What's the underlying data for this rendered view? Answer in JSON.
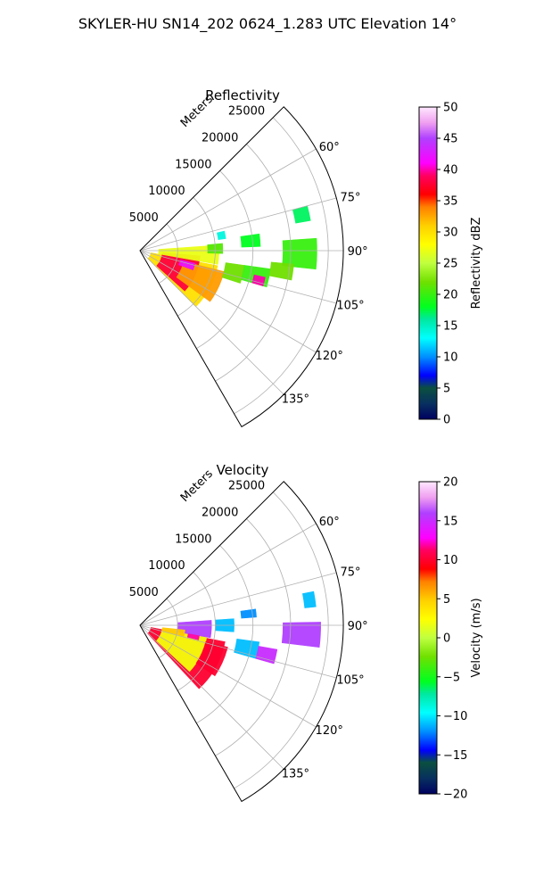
{
  "figure_title": "SKYLER-HU  SN14_202  0624_1.283 UTC Elevation 14°",
  "chart_data": [
    {
      "type": "heatmap",
      "subtype": "polar-sector-radar",
      "title": "Reflectivity",
      "radial_label": "Meters",
      "radial_ticks": [
        5000,
        10000,
        15000,
        20000,
        25000
      ],
      "radial_tick_labels": [
        "5000",
        "10000",
        "15000",
        "20000",
        "25000"
      ],
      "rlim": [
        0,
        27000
      ],
      "azimuth_range_deg": [
        45,
        150
      ],
      "azimuth_ticks": [
        60,
        75,
        90,
        105,
        120,
        135
      ],
      "azimuth_tick_labels": [
        "60°",
        "75°",
        "90°",
        "105°",
        "120°",
        "135°"
      ],
      "grid": true,
      "colorbar": {
        "label": "Reflectivity dBZ",
        "range": [
          0,
          50
        ],
        "ticks": [
          0,
          5,
          10,
          15,
          20,
          25,
          30,
          35,
          40,
          45,
          50
        ],
        "tick_labels": [
          "0",
          "5",
          "10",
          "15",
          "20",
          "25",
          "30",
          "35",
          "40",
          "45",
          "50"
        ],
        "stops": [
          [
            0,
            "#000060"
          ],
          [
            0.05,
            "#083060"
          ],
          [
            0.1,
            "#0a5040"
          ],
          [
            0.14,
            "#0000ff"
          ],
          [
            0.2,
            "#0090ff"
          ],
          [
            0.26,
            "#00ffff"
          ],
          [
            0.32,
            "#00e8a0"
          ],
          [
            0.36,
            "#00ff20"
          ],
          [
            0.44,
            "#70e000"
          ],
          [
            0.5,
            "#c0ff40"
          ],
          [
            0.56,
            "#ffff00"
          ],
          [
            0.62,
            "#ffd000"
          ],
          [
            0.68,
            "#ff8000"
          ],
          [
            0.72,
            "#ff0000"
          ],
          [
            0.78,
            "#ff0060"
          ],
          [
            0.82,
            "#ff00ff"
          ],
          [
            0.9,
            "#b040ff"
          ],
          [
            0.95,
            "#f0a0f0"
          ],
          [
            1,
            "#ffe8ff"
          ]
        ]
      },
      "echo_regions": [
        {
          "az": [
            101,
            135
          ],
          "r": [
            1500,
            10500
          ],
          "value": 30
        },
        {
          "az": [
            95,
            132
          ],
          "r": [
            3000,
            8000
          ],
          "value": 38
        },
        {
          "az": [
            86,
            100
          ],
          "r": [
            2500,
            10500
          ],
          "value": 27
        },
        {
          "az": [
            104,
            126
          ],
          "r": [
            6000,
            11500
          ],
          "value": 33
        },
        {
          "az": [
            103,
            110
          ],
          "r": [
            5500,
            7500
          ],
          "value": 42
        },
        {
          "az": [
            85,
            92
          ],
          "r": [
            9000,
            11000
          ],
          "value": 21
        },
        {
          "az": [
            98,
            108
          ],
          "r": [
            11500,
            14000
          ],
          "value": 22
        },
        {
          "az": [
            98,
            106
          ],
          "r": [
            14000,
            17500
          ],
          "value": 20
        },
        {
          "az": [
            102,
            106
          ],
          "r": [
            15500,
            17000
          ],
          "value": 40
        },
        {
          "az": [
            82,
            88
          ],
          "r": [
            13500,
            16000
          ],
          "value": 18
        },
        {
          "az": [
            86,
            96
          ],
          "r": [
            19000,
            23500
          ],
          "value": 20
        },
        {
          "az": [
            95,
            101
          ],
          "r": [
            17500,
            20500
          ],
          "value": 22
        },
        {
          "az": [
            75,
            80
          ],
          "r": [
            21000,
            23000
          ],
          "value": 17
        },
        {
          "az": [
            77,
            82
          ],
          "r": [
            10500,
            11500
          ],
          "value": 14
        }
      ]
    },
    {
      "type": "heatmap",
      "subtype": "polar-sector-radar",
      "title": "Velocity",
      "radial_label": "Meters",
      "radial_ticks": [
        5000,
        10000,
        15000,
        20000,
        25000
      ],
      "radial_tick_labels": [
        "5000",
        "10000",
        "15000",
        "20000",
        "25000"
      ],
      "rlim": [
        0,
        27000
      ],
      "azimuth_range_deg": [
        45,
        150
      ],
      "azimuth_ticks": [
        60,
        75,
        90,
        105,
        120,
        135
      ],
      "azimuth_tick_labels": [
        "60°",
        "75°",
        "90°",
        "105°",
        "120°",
        "135°"
      ],
      "grid": true,
      "colorbar": {
        "label": "Velocity (m/s)",
        "range": [
          -20,
          20
        ],
        "ticks": [
          -20,
          -15,
          -10,
          -5,
          0,
          5,
          10,
          15,
          20
        ],
        "tick_labels": [
          "−20",
          "−15",
          "−10",
          "−5",
          "0",
          "5",
          "10",
          "15",
          "20"
        ],
        "stops": [
          [
            0,
            "#000060"
          ],
          [
            0.05,
            "#083060"
          ],
          [
            0.1,
            "#0a5040"
          ],
          [
            0.14,
            "#0000ff"
          ],
          [
            0.2,
            "#0090ff"
          ],
          [
            0.26,
            "#00ffff"
          ],
          [
            0.32,
            "#00e8a0"
          ],
          [
            0.36,
            "#00ff20"
          ],
          [
            0.44,
            "#70e000"
          ],
          [
            0.5,
            "#c0ff40"
          ],
          [
            0.56,
            "#ffff00"
          ],
          [
            0.62,
            "#ffd000"
          ],
          [
            0.68,
            "#ff8000"
          ],
          [
            0.72,
            "#ff0000"
          ],
          [
            0.78,
            "#ff0060"
          ],
          [
            0.82,
            "#ff00ff"
          ],
          [
            0.9,
            "#b040ff"
          ],
          [
            0.95,
            "#f0a0f0"
          ],
          [
            1,
            "#ffe8ff"
          ]
        ]
      },
      "echo_regions": [
        {
          "az": [
            101,
            137
          ],
          "r": [
            1500,
            11500
          ],
          "value": 10
        },
        {
          "az": [
            100,
            133
          ],
          "r": [
            3000,
            9000
          ],
          "value": 2
        },
        {
          "az": [
            86,
            100
          ],
          "r": [
            5000,
            9500
          ],
          "value": 16
        },
        {
          "az": [
            96,
            104
          ],
          "r": [
            3000,
            6000
          ],
          "value": 5
        },
        {
          "az": [
            104,
            124
          ],
          "r": [
            9000,
            12000
          ],
          "value": 10
        },
        {
          "az": [
            86,
            94
          ],
          "r": [
            10000,
            12500
          ],
          "value": -11
        },
        {
          "az": [
            98,
            106
          ],
          "r": [
            13000,
            16000
          ],
          "value": -11
        },
        {
          "az": [
            100,
            106
          ],
          "r": [
            16000,
            18500
          ],
          "value": 15
        },
        {
          "az": [
            89,
            97
          ],
          "r": [
            19000,
            24000
          ],
          "value": 16
        },
        {
          "az": [
            79,
            84
          ],
          "r": [
            22000,
            23500
          ],
          "value": -11
        },
        {
          "az": [
            82,
            86
          ],
          "r": [
            13500,
            15500
          ],
          "value": -12
        },
        {
          "az": [
            100,
            104
          ],
          "r": [
            6500,
            8000
          ],
          "value": 12
        }
      ]
    }
  ]
}
